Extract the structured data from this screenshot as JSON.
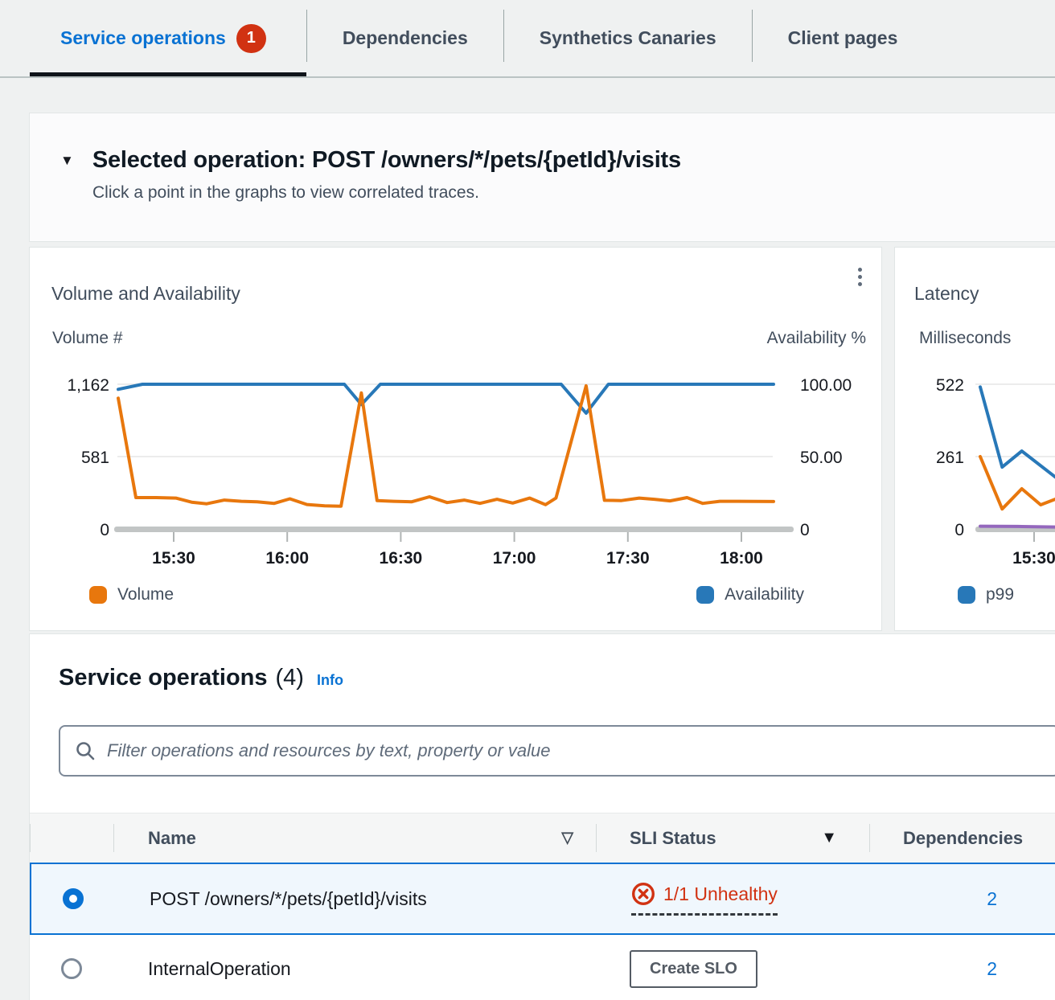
{
  "icons": {
    "sort_default": "▽",
    "sort_active": "▼",
    "collapse": "▼"
  },
  "colors": {
    "accent_blue": "#0972d3",
    "error_red": "#d13212",
    "series_orange": "#e8770d",
    "series_blue": "#2878b8",
    "series_purple": "#9467bd"
  },
  "tabs": [
    {
      "label": "Service operations",
      "badge": "1"
    },
    {
      "label": "Dependencies"
    },
    {
      "label": "Synthetics Canaries"
    },
    {
      "label": "Client pages"
    }
  ],
  "selected_operation": {
    "title": "Selected operation: POST /owners/*/pets/{petId}/visits",
    "subtitle": "Click a point in the graphs to view correlated traces."
  },
  "chart_data": [
    {
      "type": "line",
      "title": "Volume and Availability",
      "left_axis": {
        "label": "Volume #",
        "ticks": [
          "1,162",
          "581",
          "0"
        ],
        "max": 1162,
        "min": 0
      },
      "right_axis": {
        "label": "Availability %",
        "ticks": [
          "100.00",
          "50.00",
          "0"
        ],
        "max": 100,
        "min": 0
      },
      "x_ticks": [
        "15:30",
        "16:00",
        "16:30",
        "17:00",
        "17:30",
        "18:00"
      ],
      "legend": [
        {
          "name": "Volume",
          "color": "#e8770d"
        },
        {
          "name": "Availability",
          "color": "#2878b8"
        }
      ],
      "series": [
        {
          "name": "Availability",
          "axis": "right",
          "color": "#2878b8",
          "points": [
            [
              0,
              96.5
            ],
            [
              0.037,
              100
            ],
            [
              0.345,
              100
            ],
            [
              0.371,
              86
            ],
            [
              0.4,
              100
            ],
            [
              0.676,
              100
            ],
            [
              0.714,
              80
            ],
            [
              0.748,
              100
            ],
            [
              1,
              100
            ]
          ]
        },
        {
          "name": "Volume",
          "axis": "left",
          "color": "#e8770d",
          "points": [
            [
              0,
              1050
            ],
            [
              0.027,
              252
            ],
            [
              0.058,
              252
            ],
            [
              0.088,
              248
            ],
            [
              0.112,
              215
            ],
            [
              0.135,
              202
            ],
            [
              0.162,
              232
            ],
            [
              0.188,
              222
            ],
            [
              0.212,
              218
            ],
            [
              0.238,
              205
            ],
            [
              0.262,
              242
            ],
            [
              0.288,
              196
            ],
            [
              0.315,
              186
            ],
            [
              0.34,
              183
            ],
            [
              0.371,
              1092
            ],
            [
              0.395,
              228
            ],
            [
              0.42,
              222
            ],
            [
              0.448,
              218
            ],
            [
              0.475,
              258
            ],
            [
              0.502,
              212
            ],
            [
              0.528,
              232
            ],
            [
              0.552,
              205
            ],
            [
              0.578,
              238
            ],
            [
              0.602,
              208
            ],
            [
              0.628,
              248
            ],
            [
              0.652,
              195
            ],
            [
              0.668,
              248
            ],
            [
              0.714,
              1150
            ],
            [
              0.742,
              230
            ],
            [
              0.768,
              228
            ],
            [
              0.795,
              248
            ],
            [
              0.818,
              238
            ],
            [
              0.842,
              225
            ],
            [
              0.868,
              252
            ],
            [
              0.892,
              205
            ],
            [
              0.918,
              222
            ],
            [
              0.945,
              222
            ],
            [
              1,
              220
            ]
          ]
        }
      ]
    },
    {
      "type": "line",
      "title": "Latency",
      "left_axis": {
        "label": "Milliseconds",
        "ticks": [
          "522",
          "261",
          "0"
        ],
        "max": 522,
        "min": 0
      },
      "x_ticks": [
        "15:30"
      ],
      "legend": [
        {
          "name": "p99",
          "color": "#2878b8"
        },
        {
          "name": "",
          "color": "#e8770d"
        }
      ],
      "series": [
        {
          "name": "p99",
          "axis": "left",
          "color": "#2878b8",
          "points": [
            [
              0,
              512
            ],
            [
              0.29,
              223
            ],
            [
              0.55,
              281
            ],
            [
              1,
              186
            ]
          ]
        },
        {
          "name": "",
          "axis": "left",
          "color": "#e8770d",
          "points": [
            [
              0,
              261
            ],
            [
              0.29,
              72
            ],
            [
              0.55,
              145
            ],
            [
              0.8,
              87
            ],
            [
              1,
              108
            ]
          ]
        },
        {
          "name": "",
          "axis": "left",
          "color": "#9467bd",
          "points": [
            [
              0,
              10
            ],
            [
              0.5,
              9
            ],
            [
              1,
              7
            ]
          ]
        }
      ]
    }
  ],
  "operations": {
    "heading": "Service operations",
    "count": "(4)",
    "info": "Info",
    "filter_placeholder": "Filter operations and resources by text, property or value",
    "columns": {
      "name": "Name",
      "sli": "SLI Status",
      "deps": "Dependencies"
    },
    "rows": [
      {
        "name": "POST /owners/*/pets/{petId}/visits",
        "sli_status": "1/1 Unhealthy",
        "dependencies": "2"
      },
      {
        "name": "InternalOperation",
        "sli_button": "Create SLO",
        "dependencies": "2"
      }
    ]
  }
}
